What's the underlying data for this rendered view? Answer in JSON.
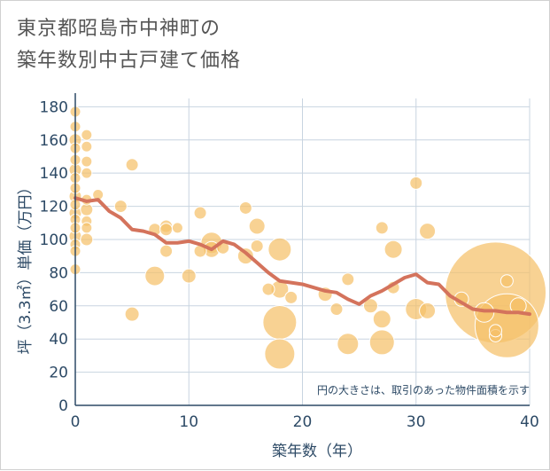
{
  "chart_data": {
    "type": "scatter",
    "title_lines": [
      "東京都昭島市中神町の",
      "築年数別中古戸建て価格"
    ],
    "xlabel": "築年数（年）",
    "ylabel": "坪（3.3㎡）単価（万円）",
    "xlim": [
      0,
      40
    ],
    "ylim": [
      0,
      185
    ],
    "x_ticks": [
      0,
      10,
      20,
      30,
      40
    ],
    "y_ticks": [
      0,
      20,
      40,
      60,
      80,
      100,
      120,
      140,
      160,
      180
    ],
    "grid": true,
    "note": "円の大きさは、取引のあった物件面積を示す",
    "colors": {
      "bubble_fill": "#f5c06a",
      "bubble_stroke": "#ffffff",
      "trend_line": "#d4735c",
      "grid": "#c8d4e0",
      "axis": "#2d4a66"
    },
    "bubbles": [
      {
        "x": 0,
        "y": 177,
        "r": 6
      },
      {
        "x": 0,
        "y": 168,
        "r": 6
      },
      {
        "x": 0,
        "y": 160,
        "r": 7
      },
      {
        "x": 0,
        "y": 155,
        "r": 6
      },
      {
        "x": 0,
        "y": 148,
        "r": 6
      },
      {
        "x": 0,
        "y": 142,
        "r": 7
      },
      {
        "x": 0,
        "y": 137,
        "r": 6
      },
      {
        "x": 0,
        "y": 131,
        "r": 6
      },
      {
        "x": 0,
        "y": 126,
        "r": 7
      },
      {
        "x": 0,
        "y": 121,
        "r": 6
      },
      {
        "x": 0,
        "y": 116,
        "r": 7
      },
      {
        "x": 0,
        "y": 112,
        "r": 6
      },
      {
        "x": 0,
        "y": 107,
        "r": 6
      },
      {
        "x": 0,
        "y": 102,
        "r": 7
      },
      {
        "x": 0,
        "y": 97,
        "r": 6
      },
      {
        "x": 0,
        "y": 93,
        "r": 6
      },
      {
        "x": 0,
        "y": 82,
        "r": 6
      },
      {
        "x": 1,
        "y": 163,
        "r": 6
      },
      {
        "x": 1,
        "y": 156,
        "r": 6
      },
      {
        "x": 1,
        "y": 147,
        "r": 6
      },
      {
        "x": 1,
        "y": 140,
        "r": 6
      },
      {
        "x": 1,
        "y": 124,
        "r": 6
      },
      {
        "x": 1,
        "y": 118,
        "r": 7
      },
      {
        "x": 1,
        "y": 111,
        "r": 6
      },
      {
        "x": 1,
        "y": 107,
        "r": 6
      },
      {
        "x": 1,
        "y": 100,
        "r": 7
      },
      {
        "x": 2,
        "y": 127,
        "r": 6
      },
      {
        "x": 4,
        "y": 120,
        "r": 7
      },
      {
        "x": 5,
        "y": 145,
        "r": 7
      },
      {
        "x": 5,
        "y": 55,
        "r": 8
      },
      {
        "x": 7,
        "y": 106,
        "r": 7
      },
      {
        "x": 7,
        "y": 78,
        "r": 11
      },
      {
        "x": 8,
        "y": 108,
        "r": 7
      },
      {
        "x": 8,
        "y": 106,
        "r": 7
      },
      {
        "x": 8,
        "y": 93,
        "r": 7
      },
      {
        "x": 9,
        "y": 107,
        "r": 6
      },
      {
        "x": 10,
        "y": 78,
        "r": 8
      },
      {
        "x": 11,
        "y": 116,
        "r": 7
      },
      {
        "x": 11,
        "y": 93,
        "r": 7
      },
      {
        "x": 12,
        "y": 98,
        "r": 12
      },
      {
        "x": 12,
        "y": 94,
        "r": 9
      },
      {
        "x": 13,
        "y": 95,
        "r": 7
      },
      {
        "x": 15,
        "y": 119,
        "r": 7
      },
      {
        "x": 15,
        "y": 90,
        "r": 9
      },
      {
        "x": 16,
        "y": 108,
        "r": 9
      },
      {
        "x": 16,
        "y": 96,
        "r": 7
      },
      {
        "x": 17,
        "y": 70,
        "r": 7
      },
      {
        "x": 18,
        "y": 94,
        "r": 13
      },
      {
        "x": 18,
        "y": 70,
        "r": 10
      },
      {
        "x": 18,
        "y": 50,
        "r": 19
      },
      {
        "x": 18,
        "y": 31,
        "r": 17
      },
      {
        "x": 19,
        "y": 65,
        "r": 7
      },
      {
        "x": 22,
        "y": 67,
        "r": 8
      },
      {
        "x": 23,
        "y": 58,
        "r": 7
      },
      {
        "x": 24,
        "y": 76,
        "r": 7
      },
      {
        "x": 24,
        "y": 37,
        "r": 12
      },
      {
        "x": 26,
        "y": 60,
        "r": 8
      },
      {
        "x": 27,
        "y": 107,
        "r": 7
      },
      {
        "x": 27,
        "y": 52,
        "r": 10
      },
      {
        "x": 27,
        "y": 38,
        "r": 14
      },
      {
        "x": 28,
        "y": 94,
        "r": 10
      },
      {
        "x": 28,
        "y": 71,
        "r": 7
      },
      {
        "x": 30,
        "y": 134,
        "r": 7
      },
      {
        "x": 30,
        "y": 58,
        "r": 12
      },
      {
        "x": 31,
        "y": 105,
        "r": 9
      },
      {
        "x": 31,
        "y": 57,
        "r": 9
      },
      {
        "x": 34,
        "y": 64,
        "r": 8
      },
      {
        "x": 36,
        "y": 56,
        "r": 11
      },
      {
        "x": 37,
        "y": 42,
        "r": 7
      },
      {
        "x": 37,
        "y": 45,
        "r": 7
      },
      {
        "x": 37,
        "y": 68,
        "r": 57
      },
      {
        "x": 38,
        "y": 48,
        "r": 36
      },
      {
        "x": 38,
        "y": 75,
        "r": 7
      },
      {
        "x": 39,
        "y": 60,
        "r": 9
      }
    ],
    "trend": {
      "x": [
        0,
        1,
        2,
        3,
        4,
        5,
        6,
        7,
        8,
        9,
        10,
        11,
        12,
        13,
        14,
        15,
        16,
        17,
        18,
        19,
        20,
        21,
        22,
        23,
        24,
        25,
        26,
        27,
        28,
        29,
        30,
        31,
        32,
        33,
        34,
        35,
        36,
        37,
        38,
        39,
        40
      ],
      "y": [
        125,
        123,
        124,
        117,
        113,
        106,
        105,
        103,
        98,
        98,
        99,
        97,
        94,
        99,
        97,
        92,
        86,
        80,
        75,
        74,
        73,
        71,
        69,
        68,
        64,
        61,
        66,
        69,
        73,
        77,
        79,
        74,
        73,
        66,
        62,
        58,
        57,
        57,
        56,
        56,
        55
      ]
    }
  }
}
